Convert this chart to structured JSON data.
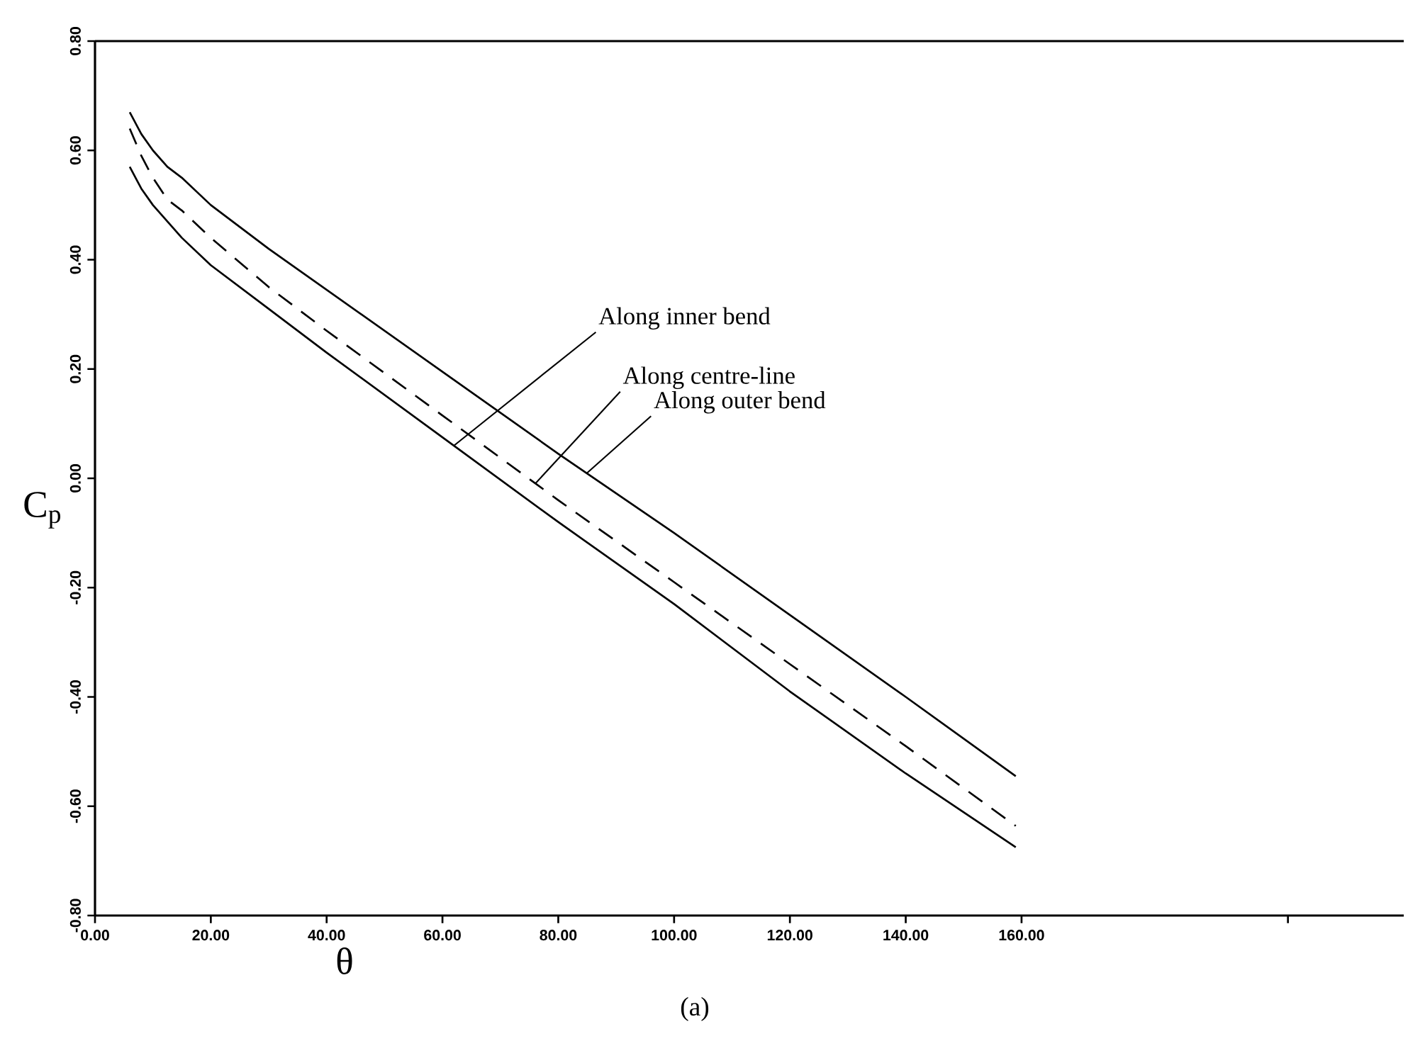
{
  "chart_data": {
    "type": "line",
    "xlabel": "θ",
    "ylabel": "C$_{p}$",
    "x": [
      6,
      8,
      10,
      12.5,
      15,
      20,
      30,
      40,
      60,
      80,
      100,
      120,
      140,
      159
    ],
    "series": [
      {
        "color": "#000000",
        "line_style": "solid",
        "values": [
          0.57,
          0.53,
          0.5,
          0.47,
          0.44,
          0.39,
          0.31,
          0.23,
          0.075,
          -0.08,
          -0.23,
          -0.39,
          -0.54,
          -0.675
        ]
      },
      {
        "color": "#000000",
        "line_style": "dashed",
        "values": [
          0.64,
          0.59,
          0.55,
          0.51,
          0.49,
          0.44,
          0.35,
          0.27,
          0.115,
          -0.04,
          -0.19,
          -0.34,
          -0.49,
          -0.636
        ]
      },
      {
        "color": "#000000",
        "line_style": "solid",
        "values": [
          0.67,
          0.63,
          0.6,
          0.57,
          0.55,
          0.5,
          0.42,
          0.345,
          0.195,
          0.045,
          -0.1,
          -0.25,
          -0.4,
          -0.545
        ]
      }
    ],
    "xlim": [
      0,
      226
    ],
    "ylim": [
      -0.8,
      0.8
    ],
    "xticks": [
      {
        "value": 0,
        "label": "0.00"
      },
      {
        "value": 20,
        "label": "20.00"
      },
      {
        "value": 40,
        "label": "40.00"
      },
      {
        "value": 60,
        "label": "60.00"
      },
      {
        "value": 80,
        "label": "80.00"
      },
      {
        "value": 100,
        "label": "100.00"
      },
      {
        "value": 120,
        "label": "120.00"
      },
      {
        "value": 140,
        "label": "140.00"
      },
      {
        "value": 160,
        "label": "160.00"
      },
      {
        "value": 206,
        "label": null
      }
    ],
    "yticks": [
      {
        "value": -0.8,
        "label": "-0.80"
      },
      {
        "value": -0.6,
        "label": "-0.60"
      },
      {
        "value": -0.4,
        "label": "-0.40"
      },
      {
        "value": -0.2,
        "label": "-0.20"
      },
      {
        "value": 0,
        "label": "0.00"
      },
      {
        "value": 0.2,
        "label": "0.20"
      },
      {
        "value": 0.4,
        "label": "0.40"
      },
      {
        "value": 0.6,
        "label": "0.60"
      },
      {
        "value": 0.8,
        "label": "0.80"
      }
    ],
    "annotations": [
      {
        "text": "Along inner bend",
        "x": 62,
        "y": 0.06
      },
      {
        "text": "Along centre-line",
        "x": 76,
        "y": -0.01
      },
      {
        "text": "Along outer bend",
        "x": 85,
        "y": 0.01
      },
      "(a)"
    ],
    "grid": false,
    "marker": "none"
  }
}
